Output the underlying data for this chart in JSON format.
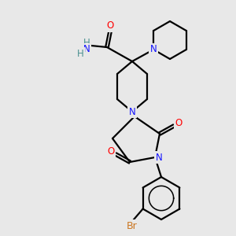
{
  "background_color": "#e8e8e8",
  "atom_colors": {
    "N": "#1414FF",
    "O": "#FF0000",
    "Br": "#CC7722",
    "C": "#000000",
    "H": "#4A9090"
  },
  "lw": 1.6,
  "fs": 8.5
}
